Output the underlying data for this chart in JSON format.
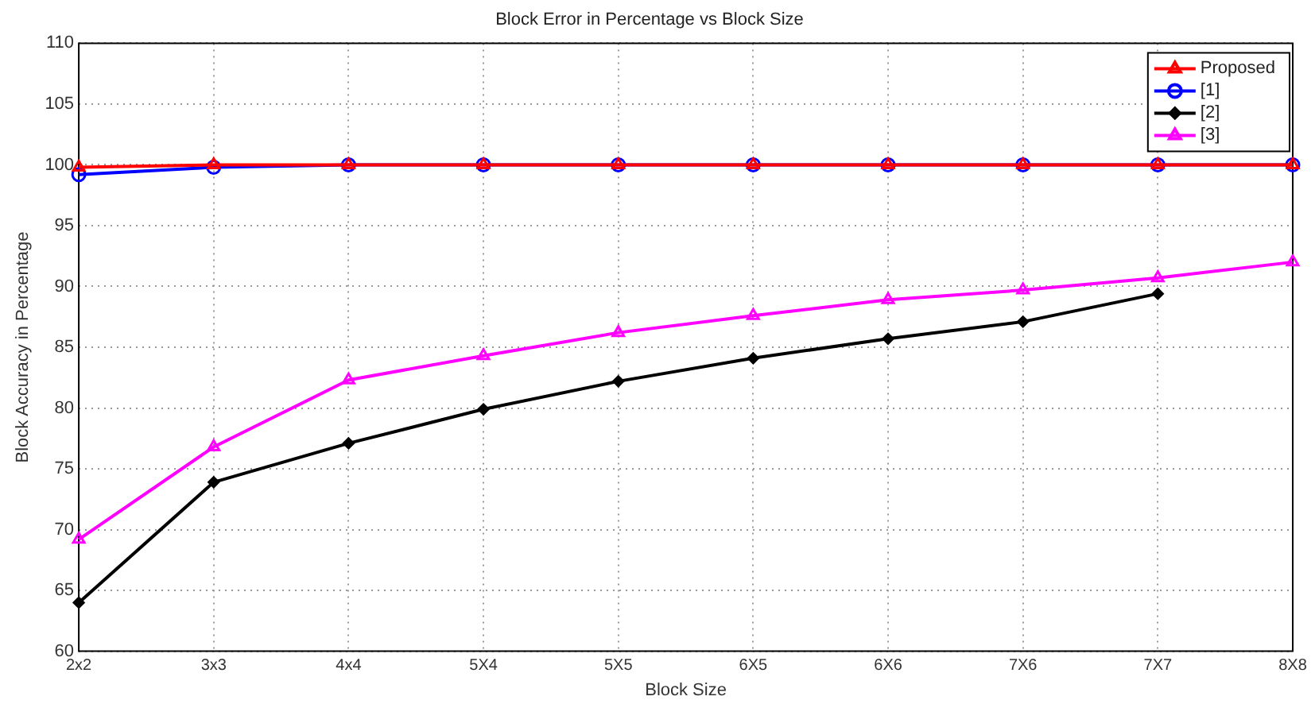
{
  "chart_data": {
    "type": "line",
    "title": "Block Error in Percentage vs Block Size",
    "xlabel": "Block Size",
    "ylabel": "Block Accuracy in Percentage",
    "categories": [
      "2x2",
      "3x3",
      "4x4",
      "5X4",
      "5X5",
      "6X5",
      "6X6",
      "7X6",
      "7X7",
      "8X8"
    ],
    "series": [
      {
        "name": "Proposed",
        "color": "#ff0000",
        "marker": "triangle",
        "values": [
          99.8,
          100,
          100,
          100,
          100,
          100,
          100,
          100,
          100,
          100
        ]
      },
      {
        "name": "[1]",
        "color": "#0000ff",
        "marker": "circle",
        "values": [
          99.2,
          99.8,
          100,
          100,
          100,
          100,
          100,
          100,
          100,
          100
        ]
      },
      {
        "name": "[2]",
        "color": "#000000",
        "marker": "diamond",
        "values": [
          64,
          73.9,
          77.1,
          79.9,
          82.2,
          84.1,
          85.7,
          87.1,
          89.4,
          null
        ]
      },
      {
        "name": "[3]",
        "color": "#ff00ff",
        "marker": "triangle",
        "values": [
          69.2,
          76.8,
          82.3,
          84.3,
          86.2,
          87.6,
          88.9,
          89.7,
          90.7,
          92
        ]
      }
    ],
    "ylim": [
      60,
      110
    ],
    "yticks": [
      60,
      65,
      70,
      75,
      80,
      85,
      90,
      95,
      100,
      105,
      110
    ],
    "grid": true,
    "legend": "top right"
  }
}
